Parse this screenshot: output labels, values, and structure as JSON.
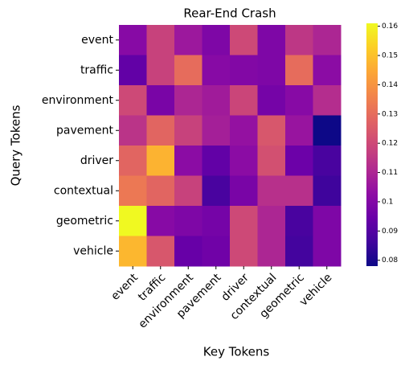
{
  "chart_data": {
    "type": "heatmap",
    "title": "Rear-End Crash",
    "x_label": "Key Tokens",
    "y_label": "Query Tokens",
    "x_categories": [
      "event",
      "traffic",
      "environment",
      "pavement",
      "driver",
      "contextual",
      "geometric",
      "vehicle"
    ],
    "y_categories": [
      "event",
      "traffic",
      "environment",
      "pavement",
      "driver",
      "contextual",
      "geometric",
      "vehicle"
    ],
    "values": [
      [
        0.101,
        0.118,
        0.106,
        0.099,
        0.12,
        0.099,
        0.115,
        0.11
      ],
      [
        0.093,
        0.118,
        0.13,
        0.101,
        0.1,
        0.099,
        0.13,
        0.102
      ],
      [
        0.12,
        0.098,
        0.11,
        0.107,
        0.119,
        0.097,
        0.101,
        0.112
      ],
      [
        0.114,
        0.128,
        0.118,
        0.108,
        0.104,
        0.124,
        0.105,
        0.078
      ],
      [
        0.128,
        0.147,
        0.102,
        0.093,
        0.102,
        0.122,
        0.095,
        0.088
      ],
      [
        0.133,
        0.128,
        0.118,
        0.088,
        0.098,
        0.113,
        0.113,
        0.086
      ],
      [
        0.161,
        0.101,
        0.099,
        0.097,
        0.12,
        0.11,
        0.088,
        0.099
      ],
      [
        0.148,
        0.124,
        0.094,
        0.096,
        0.12,
        0.11,
        0.087,
        0.099
      ]
    ],
    "colormap": "plasma",
    "zlim": [
      0.078,
      0.161
    ],
    "zticks": [
      0.08,
      0.09,
      0.1,
      0.11,
      0.12,
      0.13,
      0.14,
      0.15,
      0.16
    ]
  }
}
